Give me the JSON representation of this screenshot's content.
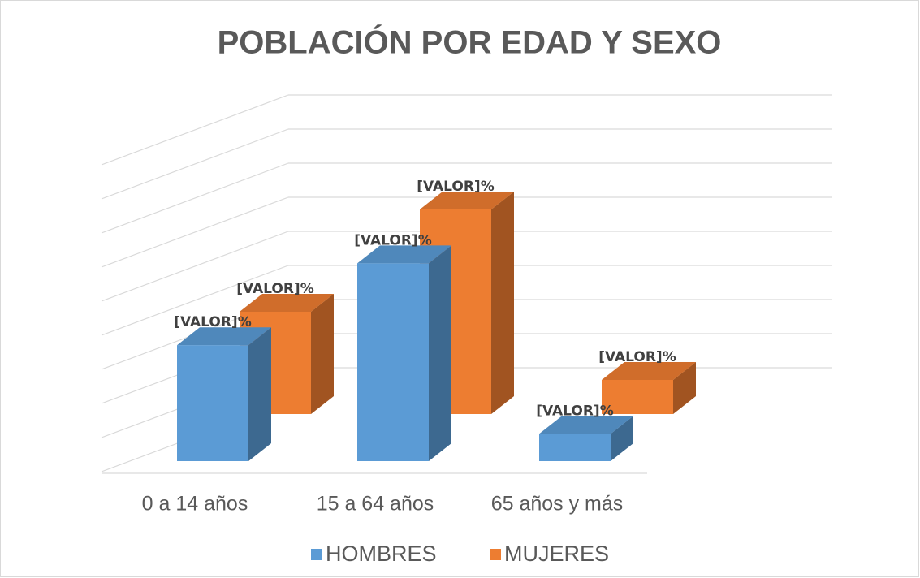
{
  "chart_data": {
    "type": "bar3d",
    "title": "POBLACIÓN POR EDAD Y SEXO",
    "categories": [
      "0 a 14 años",
      "15 a 64 años",
      "65 años y más"
    ],
    "series": [
      {
        "name": "HOMBRES",
        "color": "#5b9bd5",
        "values": [
          17,
          29,
          4
        ],
        "value_labels": [
          "[VALOR]%",
          "[VALOR]%",
          "[VALOR]%"
        ]
      },
      {
        "name": "MUJERES",
        "color": "#ed7d31",
        "values": [
          15,
          30,
          5
        ],
        "value_labels": [
          "[VALOR]%",
          "[VALOR]%",
          "[VALOR]%"
        ]
      }
    ],
    "ylim": [
      0,
      50
    ],
    "grid": true,
    "legend": "bottom"
  }
}
